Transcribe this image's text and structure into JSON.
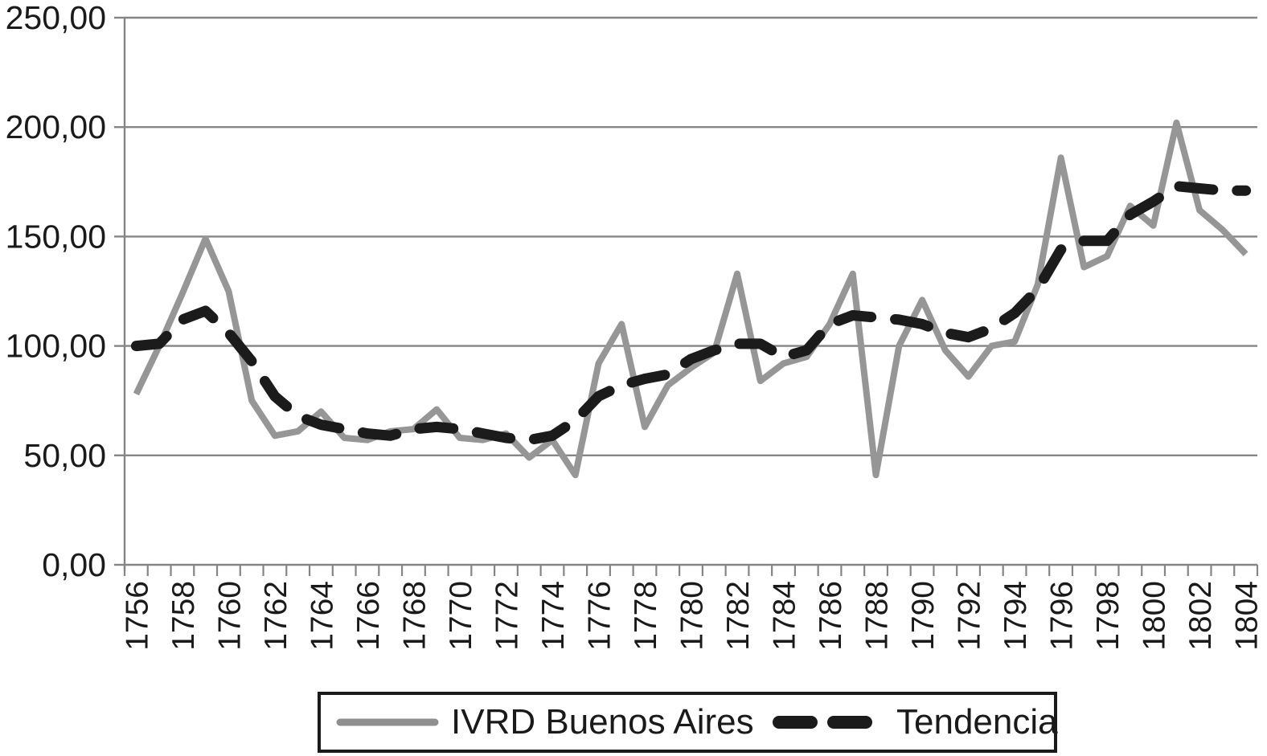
{
  "chart_data": {
    "type": "line",
    "title": "",
    "xlabel": "",
    "ylabel": "",
    "grid": true,
    "legend_position": "bottom",
    "decimal_separator": ",",
    "ylim": [
      0,
      250
    ],
    "y_ticks": [
      {
        "value": 0,
        "label": "0,00"
      },
      {
        "value": 50,
        "label": "50,00"
      },
      {
        "value": 100,
        "label": "100,00"
      },
      {
        "value": 150,
        "label": "150,00"
      },
      {
        "value": 200,
        "label": "200,00"
      },
      {
        "value": 250,
        "label": "250,00"
      }
    ],
    "x_label_every": 2,
    "years": [
      1756,
      1757,
      1758,
      1759,
      1760,
      1761,
      1762,
      1763,
      1764,
      1765,
      1766,
      1767,
      1768,
      1769,
      1770,
      1771,
      1772,
      1773,
      1774,
      1775,
      1776,
      1777,
      1778,
      1779,
      1780,
      1781,
      1782,
      1783,
      1784,
      1785,
      1786,
      1787,
      1788,
      1789,
      1790,
      1791,
      1792,
      1793,
      1794,
      1795,
      1796,
      1797,
      1798,
      1799,
      1800,
      1801,
      1802,
      1803,
      1804
    ],
    "series": [
      {
        "name": "IVRD Buenos Aires",
        "line_style": "solid",
        "color": "#969696",
        "values": [
          78,
          100,
          124,
          149,
          125,
          75,
          59,
          61,
          70,
          58,
          57,
          61,
          62,
          71,
          58,
          57,
          60,
          49,
          57,
          41,
          92,
          110,
          63,
          82,
          90,
          97,
          133,
          84,
          92,
          95,
          110,
          133,
          41,
          100,
          121,
          98,
          86,
          100,
          102,
          128,
          186,
          136,
          141,
          164,
          155,
          202,
          162,
          153,
          142
        ]
      },
      {
        "name": "Tendencia",
        "line_style": "dashed",
        "color": "#1b1b1b",
        "values": [
          100,
          101,
          112,
          116,
          106,
          93,
          77,
          68,
          64,
          62,
          60,
          59,
          62,
          63,
          62,
          60,
          58,
          57,
          59,
          66,
          77,
          82,
          85,
          87,
          94,
          98,
          101,
          101,
          95,
          98,
          110,
          114,
          113,
          112,
          110,
          106,
          104,
          108,
          115,
          126,
          144,
          148,
          148,
          160,
          166,
          173,
          172,
          171,
          171
        ]
      }
    ]
  },
  "legend": {
    "items": [
      {
        "label": "IVRD Buenos Aires",
        "swatch": "solid-grey-line"
      },
      {
        "label": "Tendencia",
        "swatch": "dashed-black-line"
      }
    ]
  },
  "colors": {
    "gridline": "#858585",
    "axis": "#858585",
    "text": "#1a1a1a"
  }
}
